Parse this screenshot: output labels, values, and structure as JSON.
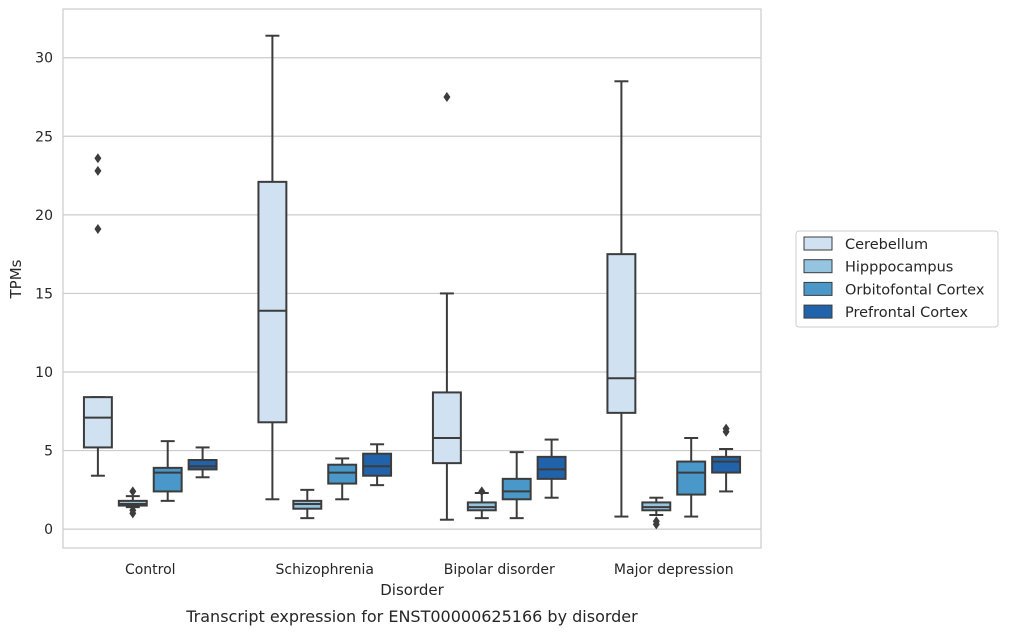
{
  "chart_data": {
    "type": "box",
    "title": "",
    "caption": "Transcript expression for ENST00000625166 by disorder",
    "xlabel": "Disorder",
    "ylabel": "TPMs",
    "categories": [
      "Control",
      "Schizophrenia",
      "Bipolar disorder",
      "Major depression"
    ],
    "ylim": [
      -1.2,
      33.1
    ],
    "yticks": [
      0,
      5,
      10,
      15,
      20,
      25,
      30
    ],
    "grid": "horizontal",
    "legend_position": "right",
    "series": [
      {
        "name": "Cerebellum",
        "color": "#d0e1f2",
        "boxes": [
          {
            "whislo": 3.4,
            "q1": 5.2,
            "med": 7.1,
            "q3": 8.4,
            "whishi": 8.4,
            "fliers": [
              19.1,
              22.8,
              23.6
            ]
          },
          {
            "whislo": 1.9,
            "q1": 6.8,
            "med": 13.9,
            "q3": 22.1,
            "whishi": 31.4,
            "fliers": []
          },
          {
            "whislo": 0.6,
            "q1": 4.2,
            "med": 5.8,
            "q3": 8.7,
            "whishi": 15.0,
            "fliers": [
              27.5
            ]
          },
          {
            "whislo": 0.8,
            "q1": 7.4,
            "med": 9.6,
            "q3": 17.5,
            "whishi": 28.5,
            "fliers": []
          }
        ]
      },
      {
        "name": "Hipppocampus",
        "color": "#94c4df",
        "boxes": [
          {
            "whislo": 1.4,
            "q1": 1.5,
            "med": 1.6,
            "q3": 1.8,
            "whishi": 2.1,
            "fliers": [
              1.0,
              1.2,
              2.4
            ]
          },
          {
            "whislo": 0.7,
            "q1": 1.3,
            "med": 1.6,
            "q3": 1.8,
            "whishi": 2.5,
            "fliers": []
          },
          {
            "whislo": 0.7,
            "q1": 1.2,
            "med": 1.4,
            "q3": 1.7,
            "whishi": 2.3,
            "fliers": [
              2.4
            ]
          },
          {
            "whislo": 0.9,
            "q1": 1.2,
            "med": 1.4,
            "q3": 1.7,
            "whishi": 2.0,
            "fliers": [
              0.3,
              0.5
            ]
          }
        ]
      },
      {
        "name": "Orbitofontal Cortex",
        "color": "#4a98c9",
        "boxes": [
          {
            "whislo": 1.8,
            "q1": 2.4,
            "med": 3.6,
            "q3": 3.9,
            "whishi": 5.6,
            "fliers": []
          },
          {
            "whislo": 1.9,
            "q1": 2.9,
            "med": 3.6,
            "q3": 4.1,
            "whishi": 4.5,
            "fliers": []
          },
          {
            "whislo": 0.7,
            "q1": 1.9,
            "med": 2.4,
            "q3": 3.2,
            "whishi": 4.9,
            "fliers": []
          },
          {
            "whislo": 0.8,
            "q1": 2.2,
            "med": 3.6,
            "q3": 4.3,
            "whishi": 5.8,
            "fliers": []
          }
        ]
      },
      {
        "name": "Prefrontal Cortex",
        "color": "#2163aa",
        "boxes": [
          {
            "whislo": 3.3,
            "q1": 3.8,
            "med": 4.0,
            "q3": 4.4,
            "whishi": 5.2,
            "fliers": []
          },
          {
            "whislo": 2.8,
            "q1": 3.4,
            "med": 4.0,
            "q3": 4.8,
            "whishi": 5.4,
            "fliers": []
          },
          {
            "whislo": 2.0,
            "q1": 3.2,
            "med": 3.8,
            "q3": 4.6,
            "whishi": 5.7,
            "fliers": []
          },
          {
            "whislo": 2.4,
            "q1": 3.6,
            "med": 4.3,
            "q3": 4.6,
            "whishi": 5.1,
            "fliers": [
              6.2,
              6.4
            ]
          }
        ]
      }
    ]
  },
  "colors": {
    "box_edge": "#3c3c3c",
    "grid": "#cccccc",
    "frame": "#cccccc",
    "text": "#262626"
  }
}
